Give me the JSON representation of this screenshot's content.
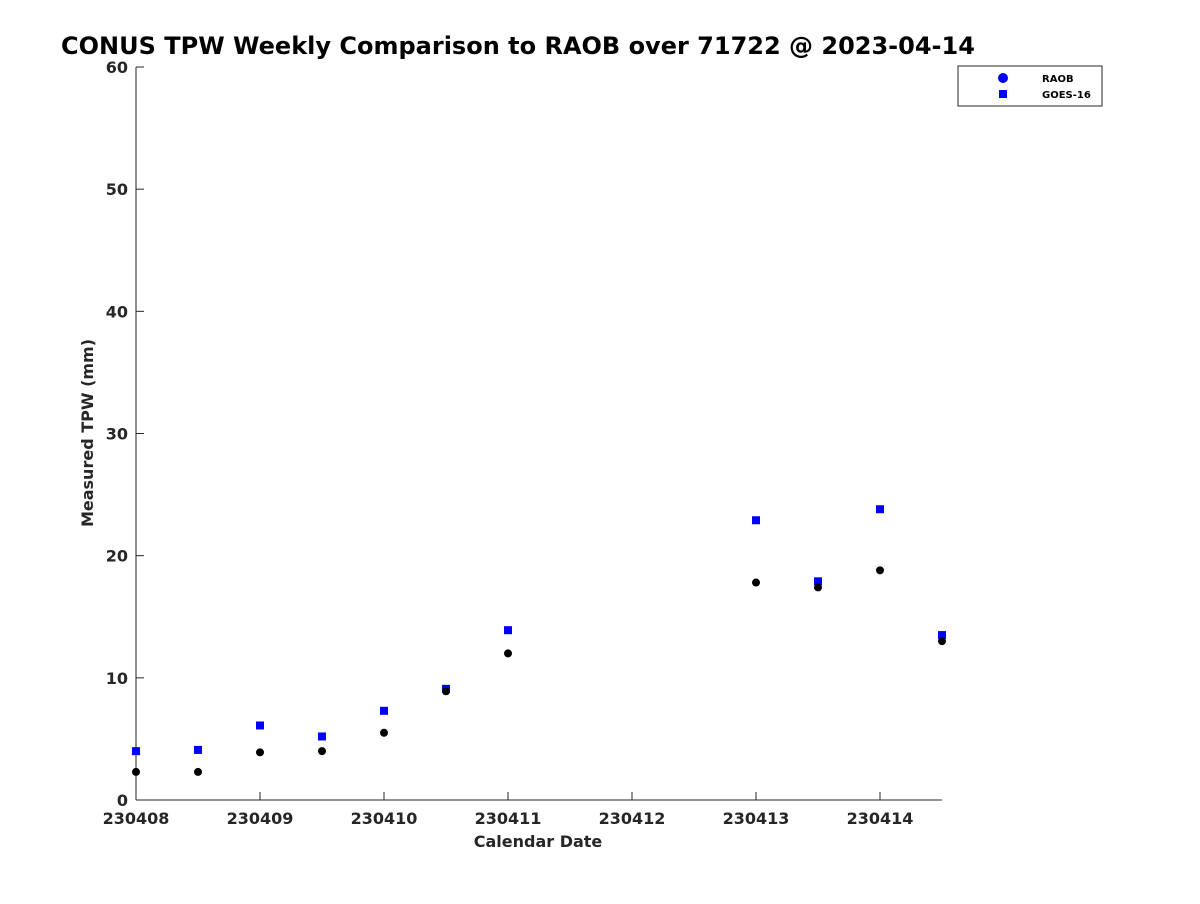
{
  "chart_data": {
    "type": "scatter",
    "title": "CONUS TPW Weekly Comparison to RAOB over 71722 @ 2023-04-14",
    "xlabel": "Calendar Date",
    "ylabel": "Measured TPW (mm)",
    "xlim": [
      "2023-04-08 00:00",
      "2023-04-14 12:00"
    ],
    "ylim": [
      0,
      60
    ],
    "x_ticks": [
      {
        "at": "2023-04-08 00:00",
        "label": "230408"
      },
      {
        "at": "2023-04-09 00:00",
        "label": "230409"
      },
      {
        "at": "2023-04-10 00:00",
        "label": "230410"
      },
      {
        "at": "2023-04-11 00:00",
        "label": "230411"
      },
      {
        "at": "2023-04-12 00:00",
        "label": "230412"
      },
      {
        "at": "2023-04-13 00:00",
        "label": "230413"
      },
      {
        "at": "2023-04-14 00:00",
        "label": "230414"
      }
    ],
    "y_ticks": [
      0,
      10,
      20,
      30,
      40,
      50,
      60
    ],
    "grid": false,
    "legend_position": "top-right",
    "series": [
      {
        "name": "RAOB",
        "marker": "circle",
        "legend_color": "#0000ff",
        "point_color": "#000000",
        "points": [
          {
            "x": "2023-04-08 00:00",
            "y": 2.3
          },
          {
            "x": "2023-04-08 12:00",
            "y": 2.3
          },
          {
            "x": "2023-04-09 00:00",
            "y": 3.9
          },
          {
            "x": "2023-04-09 12:00",
            "y": 4.0
          },
          {
            "x": "2023-04-10 00:00",
            "y": 5.5
          },
          {
            "x": "2023-04-10 12:00",
            "y": 8.9
          },
          {
            "x": "2023-04-11 00:00",
            "y": 12.0
          },
          {
            "x": "2023-04-13 00:00",
            "y": 17.8
          },
          {
            "x": "2023-04-13 12:00",
            "y": 17.4
          },
          {
            "x": "2023-04-14 00:00",
            "y": 18.8
          },
          {
            "x": "2023-04-14 12:00",
            "y": 13.0
          }
        ]
      },
      {
        "name": "GOES-16",
        "marker": "square",
        "legend_color": "#0000ff",
        "point_color": "#0000ff",
        "points": [
          {
            "x": "2023-04-08 00:00",
            "y": 4.0
          },
          {
            "x": "2023-04-08 12:00",
            "y": 4.1
          },
          {
            "x": "2023-04-09 00:00",
            "y": 6.1
          },
          {
            "x": "2023-04-09 12:00",
            "y": 5.2
          },
          {
            "x": "2023-04-10 00:00",
            "y": 7.3
          },
          {
            "x": "2023-04-10 12:00",
            "y": 9.1
          },
          {
            "x": "2023-04-11 00:00",
            "y": 13.9
          },
          {
            "x": "2023-04-13 00:00",
            "y": 22.9
          },
          {
            "x": "2023-04-13 12:00",
            "y": 17.9
          },
          {
            "x": "2023-04-14 00:00",
            "y": 23.8
          },
          {
            "x": "2023-04-14 12:00",
            "y": 13.5
          }
        ]
      }
    ]
  }
}
